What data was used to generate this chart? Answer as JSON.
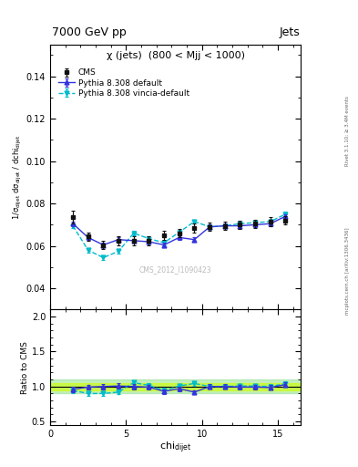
{
  "title_left": "7000 GeV pp",
  "title_right": "Jets",
  "panel_title": "χ (jets)  (800 < Mjj < 1000)",
  "watermark": "CMS_2012_I1090423",
  "ylabel_main": "1/σ$_\\mathregular{dijet}$ dσ$_\\mathregular{dijet}$ / dchi$_\\mathregular{dijet}$",
  "ylabel_ratio": "Ratio to CMS",
  "xlabel": "chi$_\\mathregular{dijet}$",
  "right_label_top": "Rivet 3.1.10; ≥ 3.4M events",
  "right_label_bottom": "mcplots.cern.ch [arXiv:1306.3436]",
  "ylim_main": [
    0.03,
    0.155
  ],
  "ylim_ratio": [
    0.45,
    2.1
  ],
  "xlim": [
    0,
    16.5
  ],
  "yticks_main": [
    0.04,
    0.06,
    0.08,
    0.1,
    0.12,
    0.14
  ],
  "yticks_ratio": [
    0.5,
    1.0,
    1.5,
    2.0
  ],
  "xticks": [
    0,
    5,
    10,
    15
  ],
  "cms_x": [
    1.5,
    2.5,
    3.5,
    4.5,
    5.5,
    6.5,
    7.5,
    8.5,
    9.5,
    10.5,
    11.5,
    12.5,
    13.5,
    14.5,
    15.5
  ],
  "cms_y": [
    0.0735,
    0.0645,
    0.0605,
    0.0625,
    0.0625,
    0.0625,
    0.065,
    0.066,
    0.0685,
    0.069,
    0.0695,
    0.07,
    0.0705,
    0.0715,
    0.072
  ],
  "cms_yerr": [
    0.003,
    0.002,
    0.002,
    0.002,
    0.002,
    0.002,
    0.002,
    0.002,
    0.002,
    0.002,
    0.002,
    0.002,
    0.002,
    0.002,
    0.002
  ],
  "py_default_x": [
    1.5,
    2.5,
    3.5,
    4.5,
    5.5,
    6.5,
    7.5,
    8.5,
    9.5,
    10.5,
    11.5,
    12.5,
    13.5,
    14.5,
    15.5
  ],
  "py_default_y": [
    0.0705,
    0.064,
    0.0605,
    0.063,
    0.0625,
    0.062,
    0.0605,
    0.064,
    0.063,
    0.069,
    0.0695,
    0.0695,
    0.07,
    0.0705,
    0.074
  ],
  "py_default_yerr": [
    0.001,
    0.001,
    0.001,
    0.001,
    0.001,
    0.001,
    0.001,
    0.001,
    0.001,
    0.001,
    0.001,
    0.001,
    0.001,
    0.001,
    0.001
  ],
  "py_vincia_x": [
    1.5,
    2.5,
    3.5,
    4.5,
    5.5,
    6.5,
    7.5,
    8.5,
    9.5,
    10.5,
    11.5,
    12.5,
    13.5,
    14.5,
    15.5
  ],
  "py_vincia_y": [
    0.0695,
    0.058,
    0.0545,
    0.0575,
    0.066,
    0.0635,
    0.0615,
    0.0665,
    0.0715,
    0.069,
    0.0695,
    0.0705,
    0.071,
    0.0715,
    0.075
  ],
  "py_vincia_yerr": [
    0.001,
    0.001,
    0.001,
    0.001,
    0.001,
    0.001,
    0.001,
    0.001,
    0.001,
    0.001,
    0.001,
    0.001,
    0.001,
    0.001,
    0.001
  ],
  "cms_color": "#111111",
  "py_default_color": "#3333dd",
  "py_vincia_color": "#00bbcc",
  "ratio_band_color": "#ccff00",
  "ratio_band_alpha": 0.6,
  "ratio_band_green_color": "#88dd88",
  "ratio_band_green_alpha": 0.5,
  "ratio_band_halfwidth": 0.05
}
